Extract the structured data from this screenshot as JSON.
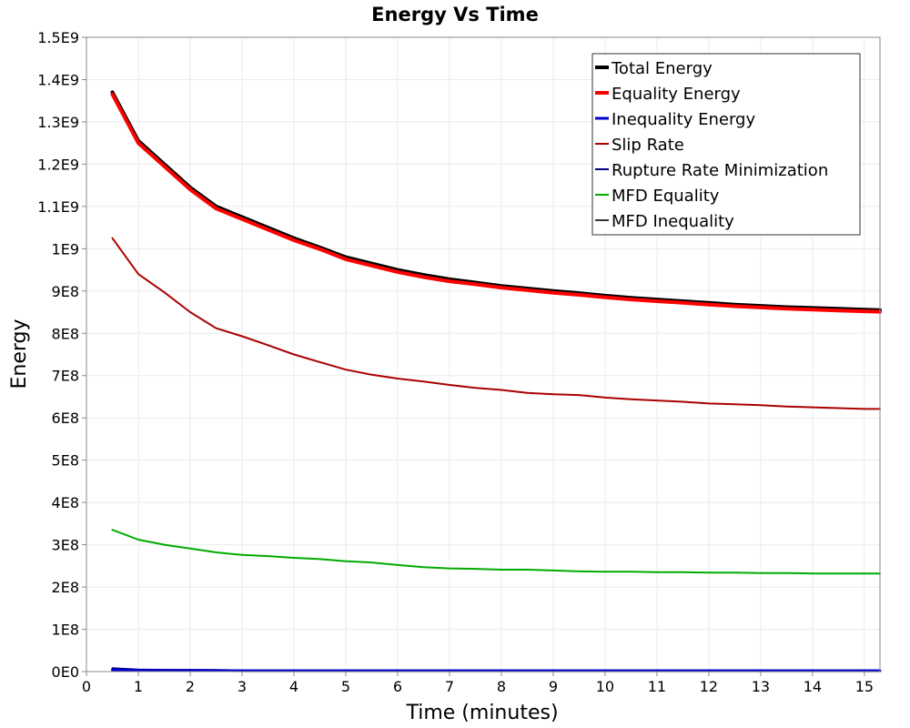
{
  "chart_data": {
    "type": "line",
    "title": "Energy Vs Time",
    "xlabel": "Time (minutes)",
    "ylabel": "Energy",
    "xlim": [
      0,
      15.3
    ],
    "ylim": [
      0,
      1500000000
    ],
    "x_ticks": [
      0,
      1,
      2,
      3,
      4,
      5,
      6,
      7,
      8,
      9,
      10,
      11,
      12,
      13,
      14,
      15
    ],
    "x_tick_labels": [
      "0",
      "1",
      "2",
      "3",
      "4",
      "5",
      "6",
      "7",
      "8",
      "9",
      "10",
      "11",
      "12",
      "13",
      "14",
      "15"
    ],
    "y_ticks": [
      0,
      100000000,
      200000000,
      300000000,
      400000000,
      500000000,
      600000000,
      700000000,
      800000000,
      900000000,
      1000000000,
      1100000000,
      1200000000,
      1300000000,
      1400000000,
      1500000000
    ],
    "y_tick_labels": [
      "0E0",
      "1E8",
      "2E8",
      "3E8",
      "4E8",
      "5E8",
      "6E8",
      "7E8",
      "8E8",
      "9E8",
      "1E9",
      "1.1E9",
      "1.2E9",
      "1.3E9",
      "1.4E9",
      "1.5E9"
    ],
    "grid": true,
    "legend_position": "top-right",
    "x": [
      0.5,
      1.0,
      1.5,
      2.0,
      2.5,
      3.0,
      3.5,
      4.0,
      4.5,
      5.0,
      5.5,
      6.0,
      6.5,
      7.0,
      7.5,
      8.0,
      8.5,
      9.0,
      9.5,
      10.0,
      10.5,
      11.0,
      11.5,
      12.0,
      12.5,
      13.0,
      13.5,
      14.0,
      14.5,
      15.0,
      15.3
    ],
    "series": [
      {
        "name": "Total Energy",
        "color": "#000000",
        "width": 4,
        "values": [
          1370000000,
          1255000000,
          1200000000,
          1145000000,
          1100000000,
          1075000000,
          1050000000,
          1025000000,
          1003000000,
          980000000,
          965000000,
          950000000,
          938000000,
          928000000,
          920000000,
          912000000,
          906000000,
          900000000,
          895000000,
          889000000,
          884000000,
          880000000,
          876000000,
          872000000,
          868000000,
          865000000,
          862000000,
          860000000,
          858000000,
          856000000,
          855000000
        ]
      },
      {
        "name": "Equality Energy",
        "color": "#ff0000",
        "width": 4,
        "values": [
          1365000000,
          1250000000,
          1195000000,
          1140000000,
          1095000000,
          1070000000,
          1045000000,
          1020000000,
          999000000,
          975000000,
          960000000,
          945000000,
          933000000,
          923000000,
          916000000,
          908000000,
          902000000,
          896000000,
          891000000,
          885000000,
          880000000,
          876000000,
          872000000,
          868000000,
          864000000,
          861000000,
          858000000,
          856000000,
          854000000,
          852000000,
          851000000
        ]
      },
      {
        "name": "Inequality Energy",
        "color": "#0000cc",
        "width": 3,
        "values": [
          4000000,
          3000000,
          3000000,
          2500000,
          2500000,
          2000000,
          2000000,
          2000000,
          2000000,
          2000000,
          2000000,
          2000000,
          2000000,
          2000000,
          2000000,
          2000000,
          2000000,
          2000000,
          2000000,
          2000000,
          2000000,
          2000000,
          2000000,
          2000000,
          2000000,
          2000000,
          2000000,
          2000000,
          2000000,
          2000000,
          2000000
        ]
      },
      {
        "name": "Slip Rate",
        "color": "#aa0000",
        "width": 2,
        "values": [
          1025000000,
          940000000,
          897000000,
          850000000,
          812000000,
          793000000,
          772000000,
          750000000,
          732000000,
          714000000,
          702000000,
          693000000,
          686000000,
          678000000,
          671000000,
          666000000,
          659000000,
          656000000,
          654000000,
          648000000,
          644000000,
          641000000,
          638000000,
          634000000,
          632000000,
          630000000,
          627000000,
          625000000,
          623000000,
          621000000,
          621000000
        ]
      },
      {
        "name": "Rupture Rate Minimization",
        "color": "#000080",
        "width": 2,
        "values": [
          8000000,
          5000000,
          4000000,
          4000000,
          3500000,
          3000000,
          3000000,
          3000000,
          3000000,
          3000000,
          3000000,
          3000000,
          3000000,
          3000000,
          3000000,
          3000000,
          3000000,
          3000000,
          3000000,
          3000000,
          3000000,
          3000000,
          3000000,
          3000000,
          3000000,
          3000000,
          3000000,
          3000000,
          3000000,
          3000000,
          3000000
        ]
      },
      {
        "name": "MFD Equality",
        "color": "#00aa00",
        "width": 2,
        "values": [
          335000000,
          312000000,
          300000000,
          291000000,
          282000000,
          276000000,
          273000000,
          269000000,
          266000000,
          261000000,
          258000000,
          252000000,
          247000000,
          244000000,
          243000000,
          241000000,
          241000000,
          239000000,
          237000000,
          236000000,
          236000000,
          235000000,
          235000000,
          234000000,
          234000000,
          233000000,
          233000000,
          232000000,
          232000000,
          232000000,
          232000000
        ]
      },
      {
        "name": "MFD Inequality",
        "color": "#333333",
        "width": 2,
        "values": [
          1000000,
          1000000,
          1000000,
          1000000,
          1000000,
          1000000,
          1000000,
          1000000,
          1000000,
          1000000,
          1000000,
          1000000,
          1000000,
          1000000,
          1000000,
          1000000,
          1000000,
          1000000,
          1000000,
          1000000,
          1000000,
          1000000,
          1000000,
          1000000,
          1000000,
          1000000,
          1000000,
          1000000,
          1000000,
          1000000,
          1000000
        ]
      }
    ]
  }
}
